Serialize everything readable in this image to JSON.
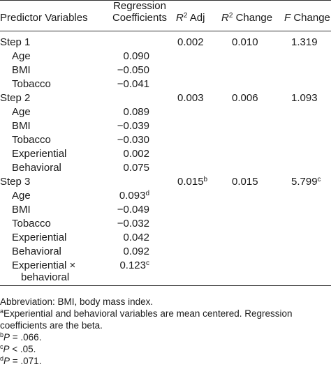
{
  "header": {
    "col_predictor": "Predictor Variables",
    "col_reg_line1": "Regression",
    "col_reg_line2": "Coefficients",
    "col_r2adj_sym": "R",
    "col_r2adj_sup": "2",
    "col_r2adj_rest": " Adj",
    "col_r2chg_sym": "R",
    "col_r2chg_sup": "2",
    "col_r2chg_rest": " Change",
    "col_fchg_sym": "F",
    "col_fchg_rest": " Change"
  },
  "rows": [
    {
      "label": "Step 1",
      "coef": "",
      "coef_sup": "",
      "r2adj": "0.002",
      "r2adj_sup": "",
      "r2chg": "0.010",
      "fchg": "1.319",
      "fchg_sup": ""
    },
    {
      "label": "Age",
      "coef": "0.090",
      "coef_sup": "",
      "r2adj": "",
      "r2adj_sup": "",
      "r2chg": "",
      "fchg": "",
      "fchg_sup": ""
    },
    {
      "label": "BMI",
      "coef": "−0.050",
      "coef_sup": "",
      "r2adj": "",
      "r2adj_sup": "",
      "r2chg": "",
      "fchg": "",
      "fchg_sup": ""
    },
    {
      "label": "Tobacco",
      "coef": "−0.041",
      "coef_sup": "",
      "r2adj": "",
      "r2adj_sup": "",
      "r2chg": "",
      "fchg": "",
      "fchg_sup": ""
    },
    {
      "label": "Step 2",
      "coef": "",
      "coef_sup": "",
      "r2adj": "0.003",
      "r2adj_sup": "",
      "r2chg": "0.006",
      "fchg": "1.093",
      "fchg_sup": ""
    },
    {
      "label": "Age",
      "coef": "0.089",
      "coef_sup": "",
      "r2adj": "",
      "r2adj_sup": "",
      "r2chg": "",
      "fchg": "",
      "fchg_sup": ""
    },
    {
      "label": "BMI",
      "coef": "−0.039",
      "coef_sup": "",
      "r2adj": "",
      "r2adj_sup": "",
      "r2chg": "",
      "fchg": "",
      "fchg_sup": ""
    },
    {
      "label": "Tobacco",
      "coef": "−0.030",
      "coef_sup": "",
      "r2adj": "",
      "r2adj_sup": "",
      "r2chg": "",
      "fchg": "",
      "fchg_sup": ""
    },
    {
      "label": "Experiential",
      "coef": "0.002",
      "coef_sup": "",
      "r2adj": "",
      "r2adj_sup": "",
      "r2chg": "",
      "fchg": "",
      "fchg_sup": ""
    },
    {
      "label": "Behavioral",
      "coef": "0.075",
      "coef_sup": "",
      "r2adj": "",
      "r2adj_sup": "",
      "r2chg": "",
      "fchg": "",
      "fchg_sup": ""
    },
    {
      "label": "Step 3",
      "coef": "",
      "coef_sup": "",
      "r2adj": "0.015",
      "r2adj_sup": "b",
      "r2chg": "0.015",
      "fchg": "5.799",
      "fchg_sup": "c"
    },
    {
      "label": "Age",
      "coef": "0.093",
      "coef_sup": "d",
      "r2adj": "",
      "r2adj_sup": "",
      "r2chg": "",
      "fchg": "",
      "fchg_sup": ""
    },
    {
      "label": "BMI",
      "coef": "−0.049",
      "coef_sup": "",
      "r2adj": "",
      "r2adj_sup": "",
      "r2chg": "",
      "fchg": "",
      "fchg_sup": ""
    },
    {
      "label": "Tobacco",
      "coef": "−0.032",
      "coef_sup": "",
      "r2adj": "",
      "r2adj_sup": "",
      "r2chg": "",
      "fchg": "",
      "fchg_sup": ""
    },
    {
      "label": "Experiential",
      "coef": "0.042",
      "coef_sup": "",
      "r2adj": "",
      "r2adj_sup": "",
      "r2chg": "",
      "fchg": "",
      "fchg_sup": ""
    },
    {
      "label": "Behavioral",
      "coef": "0.092",
      "coef_sup": "",
      "r2adj": "",
      "r2adj_sup": "",
      "r2chg": "",
      "fchg": "",
      "fchg_sup": ""
    },
    {
      "label": "Experiential ×",
      "label2": "behavioral",
      "coef": "0.123",
      "coef_sup": "c",
      "r2adj": "",
      "r2adj_sup": "",
      "r2chg": "",
      "fchg": "",
      "fchg_sup": ""
    }
  ],
  "notes": {
    "abbrev": "Abbreviation: BMI, body mass index.",
    "a_mark": "a",
    "a_text": "Experiential and behavioral variables are mean centered. Regression coefficients are the beta.",
    "b_mark": "b",
    "b_sym": "P",
    "b_text": " = .066.",
    "c_mark": "c",
    "c_sym": "P",
    "c_text": " < .05.",
    "d_mark": "d",
    "d_sym": "P",
    "d_text": " = .071."
  }
}
